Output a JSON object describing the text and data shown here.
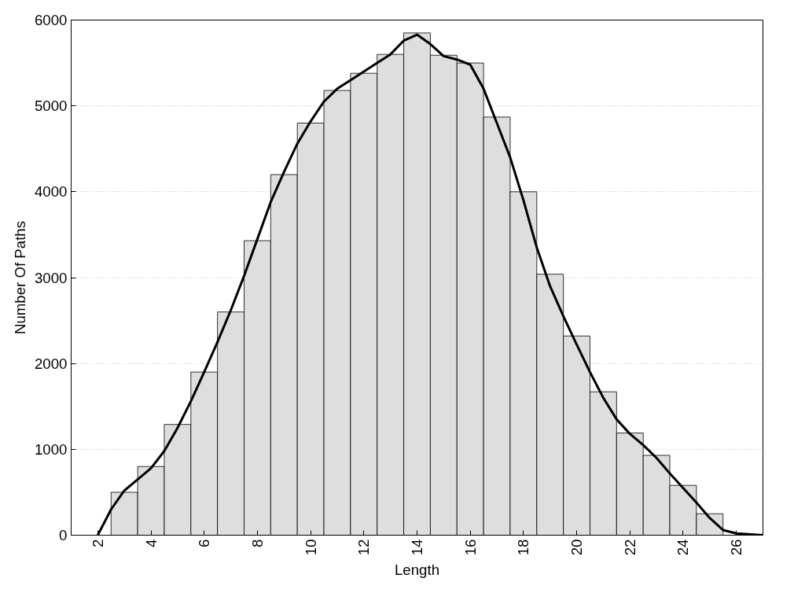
{
  "chart_data": {
    "type": "histogram",
    "xlabel": "Length",
    "ylabel": "Number Of Paths",
    "bins": [
      1.5,
      2.5,
      3.5,
      4.5,
      5.5,
      6.5,
      7.5,
      8.5,
      9.5,
      10.5,
      11.5,
      12.5,
      13.5,
      14.5,
      15.5,
      16.5,
      17.5,
      18.5,
      19.5,
      20.5,
      21.5,
      22.5,
      23.5,
      24.5,
      25.5,
      26.5
    ],
    "series": [
      {
        "color": "#dedede",
        "values": [
          null,
          500,
          800,
          1290,
          1900,
          2600,
          3430,
          4200,
          4800,
          5180,
          5380,
          5600,
          5850,
          5590,
          5500,
          4870,
          4000,
          3040,
          2320,
          1670,
          1190,
          930,
          580,
          250,
          null
        ]
      },
      {
        "type": "line",
        "color": "#000000",
        "x": [
          2,
          2.5,
          3,
          3.5,
          4,
          4.5,
          5,
          5.5,
          6,
          6.5,
          7,
          7.5,
          8,
          8.5,
          9,
          9.5,
          10,
          10.5,
          11,
          11.5,
          12,
          12.5,
          13,
          13.5,
          14,
          14.5,
          15,
          15.5,
          16,
          16.5,
          17,
          17.5,
          18,
          18.5,
          19,
          19.5,
          20,
          20.5,
          21,
          21.5,
          22,
          22.5,
          23,
          23.5,
          24,
          24.5,
          25,
          25.5,
          26,
          27
        ],
        "values": [
          0,
          300,
          520,
          650,
          780,
          980,
          1250,
          1560,
          1900,
          2250,
          2620,
          3020,
          3450,
          3880,
          4230,
          4560,
          4820,
          5050,
          5200,
          5300,
          5400,
          5500,
          5600,
          5760,
          5830,
          5720,
          5580,
          5540,
          5480,
          5200,
          4800,
          4400,
          3900,
          3350,
          2900,
          2550,
          2220,
          1900,
          1600,
          1350,
          1180,
          1050,
          900,
          720,
          550,
          380,
          200,
          60,
          20,
          0
        ]
      }
    ],
    "xlim": [
      1,
      27
    ],
    "xticks": [
      2,
      4,
      6,
      8,
      10,
      12,
      14,
      16,
      18,
      20,
      22,
      24,
      26
    ],
    "ylim": [
      0,
      6000
    ],
    "yticks": [
      0,
      1000,
      2000,
      3000,
      4000,
      5000,
      6000
    ],
    "grid": "y",
    "marker": "none",
    "line_style": "solid"
  }
}
